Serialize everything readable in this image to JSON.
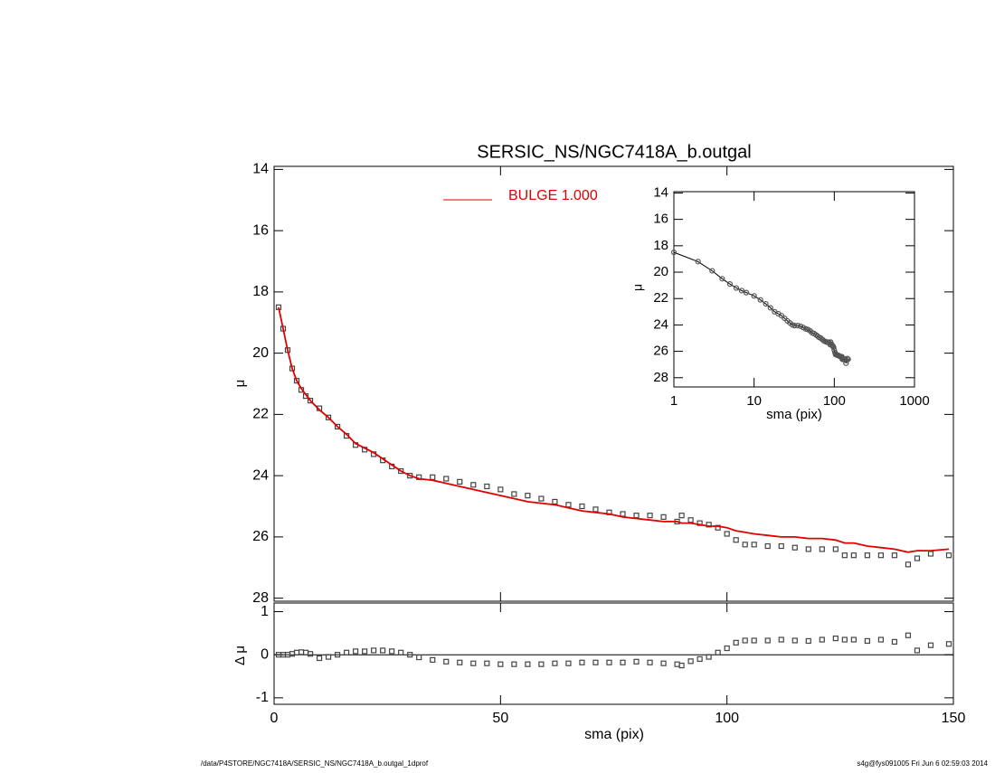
{
  "chart_data": [
    {
      "type": "scatter",
      "title": "SERSIC_NS/NGC7418A_b.outgal",
      "ylabel": "μ",
      "xlim": [
        0,
        150
      ],
      "xticks": [
        0,
        50,
        100,
        150
      ],
      "ylim": [
        13.9,
        28.1
      ],
      "yticks": [
        14,
        16,
        18,
        20,
        22,
        24,
        26,
        28
      ],
      "yinvert": true,
      "x": [
        1,
        2,
        3,
        4,
        5,
        6,
        7,
        8,
        10,
        12,
        14,
        16,
        18,
        20,
        22,
        24,
        26,
        28,
        30,
        32,
        35,
        38,
        41,
        44,
        47,
        50,
        53,
        56,
        59,
        62,
        65,
        68,
        71,
        74,
        77,
        80,
        83,
        86,
        89,
        90,
        92,
        94,
        96,
        98,
        100,
        102,
        104,
        106,
        109,
        112,
        115,
        118,
        121,
        124,
        126,
        128,
        131,
        134,
        137,
        140,
        142,
        145,
        149
      ],
      "series": [
        {
          "color": "#444444",
          "values": [
            18.5,
            19.2,
            19.9,
            20.5,
            20.9,
            21.2,
            21.4,
            21.55,
            21.8,
            22.1,
            22.4,
            22.7,
            23.0,
            23.15,
            23.3,
            23.5,
            23.7,
            23.85,
            24.0,
            24.05,
            24.05,
            24.1,
            24.2,
            24.3,
            24.35,
            24.45,
            24.6,
            24.65,
            24.75,
            24.85,
            24.95,
            25.0,
            25.1,
            25.2,
            25.25,
            25.3,
            25.3,
            25.35,
            25.5,
            25.3,
            25.45,
            25.55,
            25.6,
            25.7,
            25.9,
            26.1,
            26.25,
            26.25,
            26.3,
            26.3,
            26.35,
            26.4,
            26.4,
            26.4,
            26.6,
            26.6,
            26.6,
            26.6,
            26.6,
            26.9,
            26.7,
            26.55,
            26.6
          ]
        },
        {
          "name": "BULGE  1.000",
          "color": "#e00000",
          "values": [
            18.5,
            19.2,
            19.9,
            20.5,
            20.9,
            21.15,
            21.35,
            21.55,
            21.85,
            22.1,
            22.4,
            22.65,
            22.95,
            23.1,
            23.25,
            23.45,
            23.65,
            23.85,
            24.0,
            24.1,
            24.15,
            24.25,
            24.35,
            24.45,
            24.55,
            24.65,
            24.75,
            24.85,
            24.9,
            24.95,
            25.05,
            25.15,
            25.2,
            25.25,
            25.35,
            25.4,
            25.45,
            25.5,
            25.5,
            25.55,
            25.55,
            25.6,
            25.65,
            25.65,
            25.7,
            25.8,
            25.85,
            25.9,
            25.95,
            26.0,
            26.0,
            26.05,
            26.05,
            26.1,
            26.2,
            26.2,
            26.3,
            26.35,
            26.4,
            26.5,
            26.45,
            26.45,
            26.4
          ]
        }
      ]
    },
    {
      "type": "residual",
      "ylabel": "Δ μ",
      "xlabel": "sma (pix)",
      "xlim": [
        0,
        150
      ],
      "xticks": [
        0,
        50,
        100,
        150
      ],
      "ylim": [
        -1.15,
        1.2
      ],
      "yticks": [
        -1,
        0,
        1
      ],
      "x": [
        1,
        2,
        3,
        4,
        5,
        6,
        7,
        8,
        10,
        12,
        14,
        16,
        18,
        20,
        22,
        24,
        26,
        28,
        30,
        32,
        35,
        38,
        41,
        44,
        47,
        50,
        53,
        56,
        59,
        62,
        65,
        68,
        71,
        74,
        77,
        80,
        83,
        86,
        89,
        90,
        92,
        94,
        96,
        98,
        100,
        102,
        104,
        106,
        109,
        112,
        115,
        118,
        121,
        124,
        126,
        128,
        131,
        134,
        137,
        140,
        142,
        145,
        149
      ],
      "values": [
        0,
        0,
        0,
        0.02,
        0.05,
        0.06,
        0.05,
        0.02,
        -0.08,
        -0.05,
        0,
        0.05,
        0.08,
        0.08,
        0.1,
        0.1,
        0.08,
        0.05,
        0,
        -0.06,
        -0.12,
        -0.16,
        -0.18,
        -0.2,
        -0.2,
        -0.22,
        -0.22,
        -0.22,
        -0.22,
        -0.2,
        -0.2,
        -0.18,
        -0.18,
        -0.18,
        -0.18,
        -0.16,
        -0.18,
        -0.2,
        -0.22,
        -0.25,
        -0.15,
        -0.1,
        -0.05,
        0.05,
        0.15,
        0.28,
        0.33,
        0.33,
        0.33,
        0.35,
        0.33,
        0.32,
        0.35,
        0.38,
        0.35,
        0.35,
        0.32,
        0.35,
        0.3,
        0.45,
        0.1,
        0.22,
        0.25
      ],
      "color": "#444444"
    },
    {
      "type": "inset",
      "ylabel": "μ",
      "xlabel": "sma (pix)",
      "xlog": true,
      "xlim": [
        1,
        1000
      ],
      "xticks": [
        1,
        10,
        100,
        1000
      ],
      "ylim": [
        13.9,
        28.7
      ],
      "yticks": [
        14,
        16,
        18,
        20,
        22,
        24,
        26,
        28
      ],
      "yinvert": true
    }
  ],
  "footer": {
    "left": "/data/P4STORE/NGC7418A/SERSIC_NS/NGC7418A_b.outgal_1dprof",
    "right": "s4g@fys091005  Fri Jun  6 02:59:03 2014"
  }
}
